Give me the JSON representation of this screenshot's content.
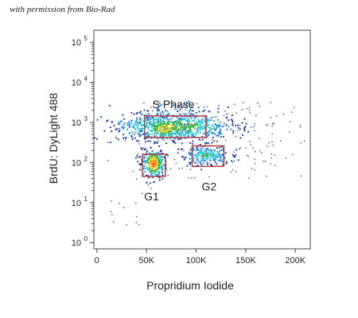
{
  "credit": "with permission from Bio-Rad",
  "chart_data": {
    "type": "scatter",
    "xlabel": "Propridium Iodide",
    "ylabel": "BrdU: DyLight 488",
    "x_scale": "linear",
    "y_scale": "log",
    "xlim": [
      -3000,
      215000
    ],
    "ylim": [
      0.7,
      200000
    ],
    "x_ticks": [
      {
        "value": 0,
        "label": "0"
      },
      {
        "value": 50000,
        "label": "50K"
      },
      {
        "value": 100000,
        "label": "100K"
      },
      {
        "value": 150000,
        "label": "150K"
      },
      {
        "value": 200000,
        "label": "200K"
      }
    ],
    "y_ticks": [
      {
        "value": 1,
        "base": "10",
        "exp": "0"
      },
      {
        "value": 10,
        "base": "10",
        "exp": "1"
      },
      {
        "value": 100,
        "base": "10",
        "exp": "2"
      },
      {
        "value": 1000,
        "base": "10",
        "exp": "3"
      },
      {
        "value": 10000,
        "base": "10",
        "exp": "4"
      },
      {
        "value": 100000,
        "base": "10",
        "exp": "5"
      }
    ],
    "gates": [
      {
        "label": "S Phase",
        "x": [
          48000,
          110000
        ],
        "y": [
          420,
          1450
        ]
      },
      {
        "label": "G1",
        "x": [
          46000,
          69000
        ],
        "y": [
          45,
          160
        ]
      },
      {
        "label": "G2",
        "x": [
          96000,
          128000
        ],
        "y": [
          80,
          260
        ]
      }
    ],
    "density_colors": [
      "#1f3fa8",
      "#2b8fe0",
      "#33c9d6",
      "#3fb34a",
      "#e8d23a",
      "#f08a1c",
      "#e0301e"
    ],
    "sparse_color": "#6a5aa8"
  }
}
